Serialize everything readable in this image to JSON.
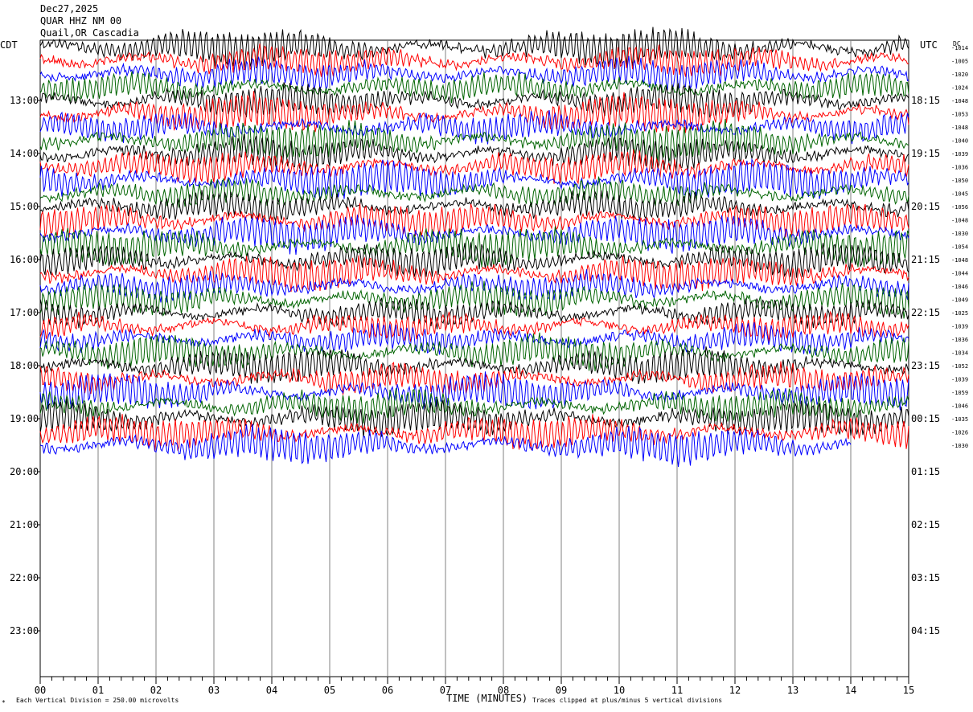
{
  "header": {
    "date": "Dec27,2025",
    "station": "QUAR HHZ NM 00",
    "location": "Quail,OR Cascadia"
  },
  "left_axis_title": "CDT",
  "right_axis_title": "UTC",
  "dc_label": "DC",
  "footer": {
    "scale": "Each Vertical Division =  250.00 microvolts",
    "clip": "Traces clipped at plus/minus 5 vertical divisions"
  },
  "chart_data": {
    "type": "line",
    "title": "",
    "xlabel": "TIME (MINUTES)",
    "xlim": [
      0,
      15
    ],
    "x_ticks": [
      "00",
      "01",
      "02",
      "03",
      "04",
      "05",
      "06",
      "07",
      "08",
      "09",
      "10",
      "11",
      "12",
      "13",
      "14",
      "15"
    ],
    "left_hour_labels": [
      "13:00",
      "14:00",
      "15:00",
      "16:00",
      "17:00",
      "18:00",
      "19:00",
      "20:00",
      "21:00",
      "22:00",
      "23:00"
    ],
    "right_hour_labels": [
      "18:15",
      "19:15",
      "20:15",
      "21:15",
      "22:15",
      "23:15",
      "00:15",
      "01:15",
      "02:15",
      "03:15",
      "04:15"
    ],
    "traces_per_hour": 4,
    "trace_color_cycle": [
      "#000000",
      "#ff0000",
      "#0000ff",
      "#006400"
    ],
    "dc_offsets": [
      "-1014",
      "-1005",
      "-1020",
      "-1024",
      "-1048",
      "-1053",
      "-1048",
      "-1040",
      "-1039",
      "-1036",
      "-1050",
      "-1045",
      "-1056",
      "-1048",
      "-1030",
      "-1054",
      "-1048",
      "-1044",
      "-1046",
      "-1049",
      "-1025",
      "-1039",
      "-1036",
      "-1034",
      "-1052",
      "-1039",
      "-1059",
      "-1046",
      "-1035",
      "-1026",
      "-1030"
    ],
    "recorded_trace_count": 31,
    "last_trace_end_minute": 14.0,
    "grid": true
  }
}
